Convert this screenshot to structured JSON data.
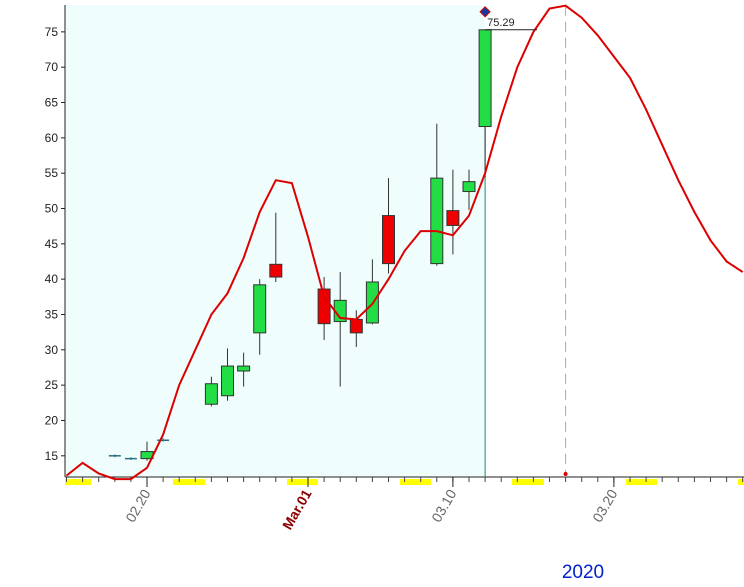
{
  "chart_data": {
    "type": "candlestick",
    "year_label": "2020",
    "x": [
      "02.18",
      "02.19",
      "02.20",
      "02.21",
      "02.24",
      "02.25",
      "02.26",
      "02.27",
      "02.28",
      "03.02",
      "03.03",
      "03.04",
      "03.05",
      "03.06",
      "03.09",
      "03.10",
      "03.11",
      "03.12"
    ],
    "open": [
      15.0,
      14.6,
      14.6,
      17.2,
      22.3,
      23.5,
      27.0,
      32.4,
      42.1,
      38.6,
      34.0,
      34.3,
      33.8,
      49.0,
      42.2,
      49.7,
      52.4,
      61.6
    ],
    "high": [
      15.2,
      14.8,
      17.0,
      17.5,
      26.2,
      30.2,
      29.6,
      40.0,
      49.4,
      40.3,
      41.0,
      35.6,
      42.8,
      54.3,
      62.0,
      55.5,
      55.5,
      75.29
    ],
    "low": [
      14.8,
      14.4,
      14.3,
      17.0,
      22.0,
      22.8,
      24.8,
      29.3,
      39.6,
      31.4,
      24.8,
      30.4,
      33.6,
      40.8,
      41.9,
      43.5,
      49.8,
      54.5
    ],
    "close": [
      15.0,
      14.6,
      15.6,
      17.2,
      25.2,
      27.7,
      27.7,
      39.2,
      40.3,
      33.7,
      37.0,
      32.4,
      39.6,
      42.2,
      54.3,
      47.6,
      53.8,
      75.29
    ],
    "up_color": "#22dd44",
    "down_color": "#ee0000",
    "flat_color": "#2a6f7f",
    "line": {
      "color": "#dd0000",
      "x": [
        "02.15",
        "02.16",
        "02.17",
        "02.18",
        "02.19",
        "02.20",
        "02.21",
        "02.22",
        "02.23",
        "02.24",
        "02.25",
        "02.26",
        "02.27",
        "02.28",
        "02.29",
        "03.01",
        "03.02",
        "03.03",
        "03.04",
        "03.05",
        "03.06",
        "03.07",
        "03.08",
        "03.09",
        "03.10",
        "03.11",
        "03.12",
        "03.13",
        "03.14",
        "03.15",
        "03.16",
        "03.17",
        "03.18",
        "03.19",
        "03.20",
        "03.21",
        "03.22",
        "03.23",
        "03.24",
        "03.25",
        "03.26",
        "03.27",
        "03.28"
      ],
      "values": [
        12.2,
        14.0,
        12.5,
        11.7,
        11.7,
        13.3,
        18.0,
        25.0,
        30.0,
        35.0,
        38.0,
        43.0,
        49.5,
        54.0,
        53.6,
        46.0,
        37.5,
        34.5,
        34.3,
        36.5,
        40.0,
        44.0,
        46.8,
        46.8,
        46.2,
        49.0,
        55.0,
        63.0,
        70.0,
        75.0,
        78.3,
        78.7,
        77.0,
        74.5,
        71.5,
        68.5,
        64.0,
        59.0,
        54.0,
        49.5,
        45.5,
        42.5,
        41.0
      ]
    },
    "xlim": [
      "02.15",
      "03.28"
    ],
    "xticks": [
      "02.20",
      {
        "value": "03.01",
        "label": "Mar.01"
      },
      "03.10",
      "03.20"
    ],
    "ylim": [
      12,
      78.8
    ],
    "yticks": [
      15,
      20,
      25,
      30,
      35,
      40,
      45,
      50,
      55,
      60,
      65,
      70,
      75
    ]
  }
}
